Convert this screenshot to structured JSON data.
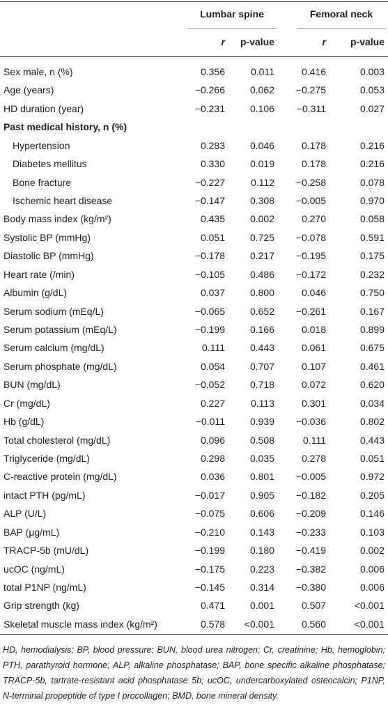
{
  "table": {
    "groups": [
      "Lumbar spine",
      "Femoral neck"
    ],
    "subheaders": [
      "r",
      "p-value",
      "r",
      "p-value"
    ],
    "rows": [
      {
        "label": "Sex male, n (%)",
        "cells": [
          "0.356",
          "0.011",
          "0.416",
          "0.003"
        ]
      },
      {
        "label": "Age (years)",
        "cells": [
          "−0.266",
          "0.062",
          "−0.275",
          "0.053"
        ]
      },
      {
        "label": "HD duration (year)",
        "cells": [
          "−0.231",
          "0.106",
          "−0.311",
          "0.027"
        ]
      },
      {
        "label": "Past medical history, n (%)",
        "section": true
      },
      {
        "label": "Hypertension",
        "indent": true,
        "cells": [
          "0.283",
          "0.046",
          "0.178",
          "0.216"
        ]
      },
      {
        "label": "Diabetes mellitus",
        "indent": true,
        "cells": [
          "0.330",
          "0.019",
          "0.178",
          "0.216"
        ]
      },
      {
        "label": "Bone fracture",
        "indent": true,
        "cells": [
          "−0.227",
          "0.112",
          "−0.258",
          "0.078"
        ]
      },
      {
        "label": "Ischemic heart disease",
        "indent": true,
        "cells": [
          "−0.147",
          "0.308",
          "−0.005",
          "0.970"
        ]
      },
      {
        "label": "Body mass index (kg/m²)",
        "cells": [
          "0.435",
          "0.002",
          "0.270",
          "0.058"
        ]
      },
      {
        "label": "Systolic BP (mmHg)",
        "cells": [
          "0.051",
          "0.725",
          "−0.078",
          "0.591"
        ]
      },
      {
        "label": "Diastolic BP (mmHg)",
        "cells": [
          "−0.178",
          "0.217",
          "−0.195",
          "0.175"
        ]
      },
      {
        "label": "Heart rate (/min)",
        "cells": [
          "−0.105",
          "0.486",
          "−0.172",
          "0.232"
        ]
      },
      {
        "label": "Albumin (g/dL)",
        "cells": [
          "0.037",
          "0.800",
          "0.046",
          "0.750"
        ]
      },
      {
        "label": "Serum sodium (mEq/L)",
        "cells": [
          "−0.065",
          "0.652",
          "−0.261",
          "0.167"
        ]
      },
      {
        "label": "Serum potassium (mEq/L)",
        "cells": [
          "−0.199",
          "0.166",
          "0.018",
          "0.899"
        ]
      },
      {
        "label": "Serum calcium (mg/dL)",
        "cells": [
          "0.111",
          "0.443",
          "0.061",
          "0.675"
        ]
      },
      {
        "label": "Serum phosphate (mg/dL)",
        "cells": [
          "0.054",
          "0.707",
          "0.107",
          "0.461"
        ]
      },
      {
        "label": "BUN (mg/dL)",
        "cells": [
          "−0.052",
          "0.718",
          "0.072",
          "0.620"
        ]
      },
      {
        "label": "Cr (mg/dL)",
        "cells": [
          "0.227",
          "0.113",
          "0.301",
          "0.034"
        ]
      },
      {
        "label": "Hb (g/dL)",
        "cells": [
          "−0.011",
          "0.939",
          "−0.036",
          "0.802"
        ]
      },
      {
        "label": "Total cholesterol (mg/dL)",
        "cells": [
          "0.096",
          "0.508",
          "0.111",
          "0.443"
        ]
      },
      {
        "label": "Triglyceride (mg/dL)",
        "cells": [
          "0.298",
          "0.035",
          "0.278",
          "0.051"
        ]
      },
      {
        "label": "C-reactive protein (mg/dL)",
        "cells": [
          "0.036",
          "0.801",
          "−0.005",
          "0.972"
        ]
      },
      {
        "label": "intact PTH (pg/mL)",
        "cells": [
          "−0.017",
          "0.905",
          "−0.182",
          "0.205"
        ]
      },
      {
        "label": "ALP (U/L)",
        "cells": [
          "−0.075",
          "0.606",
          "−0.209",
          "0.146"
        ]
      },
      {
        "label": "BAP (μg/mL)",
        "cells": [
          "−0.210",
          "0.143",
          "−0.233",
          "0.103"
        ]
      },
      {
        "label": "TRACP-5b (mU/dL)",
        "cells": [
          "−0.199",
          "0.180",
          "−0.419",
          "0.002"
        ]
      },
      {
        "label": "ucOC (ng/mL)",
        "cells": [
          "−0.175",
          "0.223",
          "−0.382",
          "0.006"
        ]
      },
      {
        "label": "total P1NP (ng/mL)",
        "cells": [
          "−0.145",
          "0.314",
          "−0.380",
          "0.006"
        ]
      },
      {
        "label": "Grip strength (kg)",
        "cells": [
          "0.471",
          "0.001",
          "0.507",
          "<0.001"
        ]
      },
      {
        "label": "Skeletal muscle mass index (kg/m²)",
        "cells": [
          "0.578",
          "<0.001",
          "0.560",
          "<0.001"
        ]
      }
    ],
    "footnote": "HD, hemodialysis; BP, blood pressure; BUN, blood urea nitrogen; Cr, creatinine; Hb, hemoglobin; PTH, parathyroid hormone; ALP, alkaline phosphatase; BAP, bone specific alkaline phosphatase; TRACP-5b, tartrate-resistant acid phosphatase 5b; ucOC, undercarboxylated osteocalcin; P1NP, N-terminal propeptide of type I procollagen; BMD, bone mineral density."
  }
}
